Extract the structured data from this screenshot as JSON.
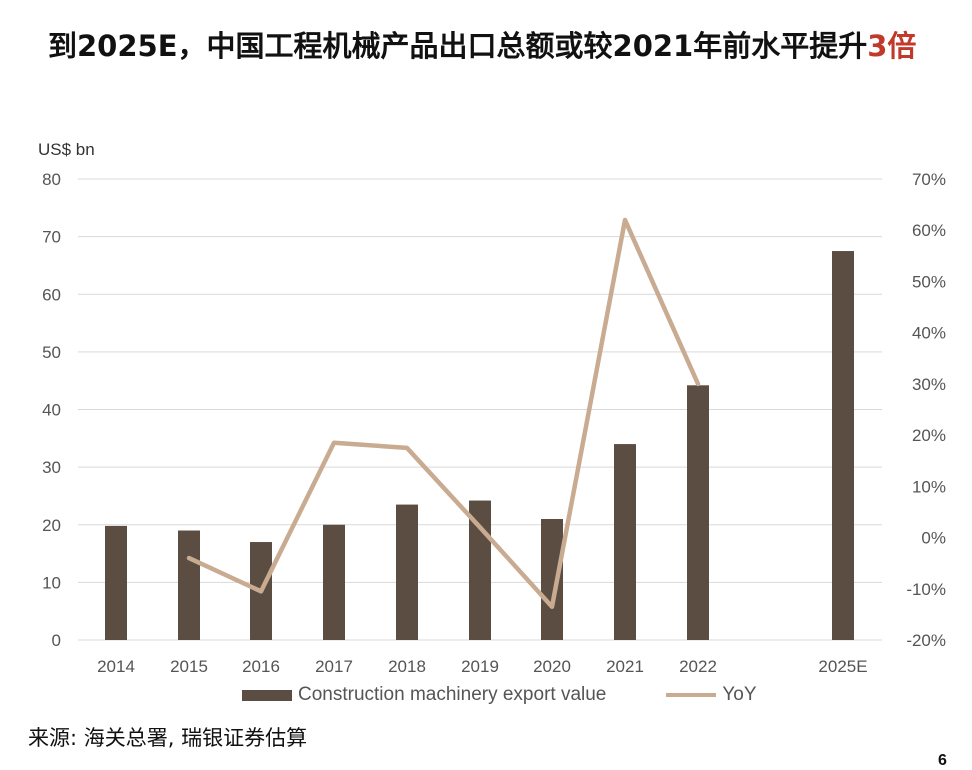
{
  "title": {
    "main": "到2025E，中国工程机械产品出口总额或较2021年前水平提升",
    "highlight": "3倍"
  },
  "chart_data": {
    "type": "bar",
    "unit_label": "US$ bn",
    "categories": [
      "2014",
      "2015",
      "2016",
      "2017",
      "2018",
      "2019",
      "2020",
      "2021",
      "2022",
      "2025E"
    ],
    "series": [
      {
        "name": "Construction machinery export value",
        "kind": "bar",
        "axis": "left",
        "values": [
          19.8,
          19.0,
          17.0,
          20.0,
          23.5,
          24.2,
          21.0,
          34.0,
          44.2,
          67.5
        ]
      },
      {
        "name": "YoY",
        "kind": "line",
        "axis": "right",
        "values": [
          null,
          -4.0,
          -10.5,
          18.5,
          17.5,
          2.0,
          -13.5,
          62.0,
          30.0,
          null
        ]
      }
    ],
    "left_axis": {
      "ylim": [
        0,
        80
      ],
      "ticks": [
        "0",
        "10",
        "20",
        "30",
        "40",
        "50",
        "60",
        "70",
        "80"
      ]
    },
    "right_axis": {
      "ylim": [
        -20,
        70
      ],
      "ticks": [
        "-20%",
        "-10%",
        "0%",
        "10%",
        "20%",
        "30%",
        "40%",
        "50%",
        "60%",
        "70%"
      ]
    },
    "grid": "horizontal",
    "legend_position": "bottom",
    "colors": {
      "bar": "#5c4d42",
      "line": "#c9ab92",
      "grid": "#d9d9d9"
    }
  },
  "legend": {
    "bar_label": "Construction machinery export value",
    "line_label": "YoY"
  },
  "source": "来源: 海关总署, 瑞银证券估算",
  "page_number": "6"
}
